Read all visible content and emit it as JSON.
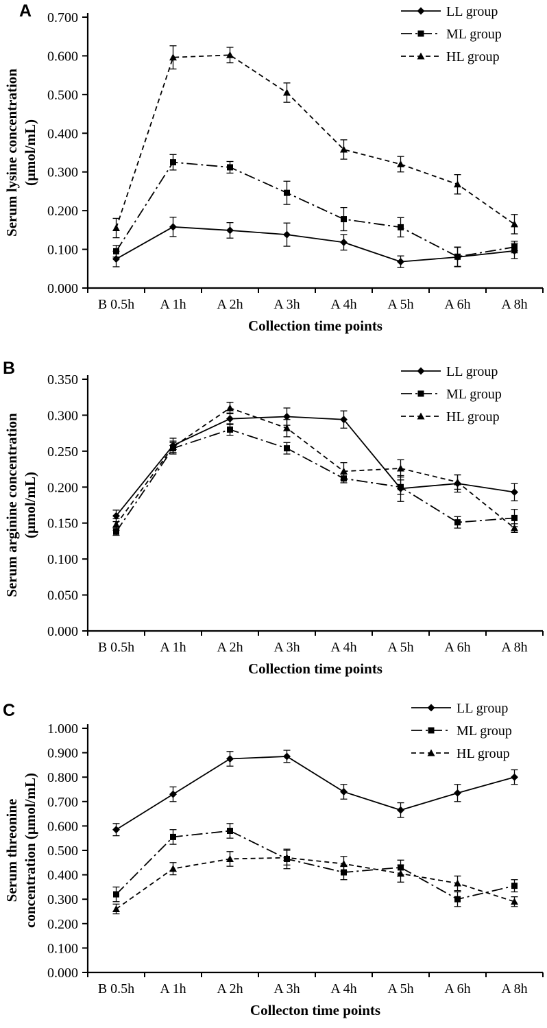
{
  "figure": {
    "panel_count": 3,
    "background_color": "#ffffff",
    "line_color": "#000000"
  },
  "chart_data": [
    {
      "type": "line",
      "label": "A",
      "xlabel": "Collection time points",
      "ylabel": [
        "Serum lysine concentration",
        "(μmol/mL)"
      ],
      "ymax": 0.7,
      "ystep": 0.1,
      "ylim": [
        0.0,
        0.7
      ],
      "grid": false,
      "legend_position": "top-right",
      "error_bars": true,
      "categories": [
        "B 0.5h",
        "A 1h",
        "A 2h",
        "A 3h",
        "A 4h",
        "A 5h",
        "A 6h",
        "A 8h"
      ],
      "series": [
        {
          "name": "LL group",
          "marker": "diamond",
          "dash": "solid",
          "values": [
            0.075,
            0.158,
            0.149,
            0.138,
            0.118,
            0.068,
            0.08,
            0.096
          ],
          "errors": [
            0.02,
            0.025,
            0.02,
            0.03,
            0.02,
            0.015,
            0.025,
            0.02
          ]
        },
        {
          "name": "ML group",
          "marker": "square",
          "dash": "dashdot",
          "values": [
            0.095,
            0.325,
            0.312,
            0.246,
            0.178,
            0.157,
            0.081,
            0.106
          ],
          "errors": [
            0.015,
            0.02,
            0.015,
            0.03,
            0.03,
            0.025,
            0.025,
            0.015
          ]
        },
        {
          "name": "HL group",
          "marker": "triangle",
          "dash": "dashed",
          "values": [
            0.155,
            0.596,
            0.602,
            0.505,
            0.358,
            0.32,
            0.268,
            0.165
          ],
          "errors": [
            0.025,
            0.03,
            0.02,
            0.025,
            0.025,
            0.02,
            0.025,
            0.025
          ]
        }
      ]
    },
    {
      "type": "line",
      "label": "B",
      "xlabel": "Collection time points",
      "ylabel": [
        "Serum arginine concentration",
        "(μmol/mL)"
      ],
      "ymax": 0.35,
      "ystep": 0.05,
      "ylim": [
        0.0,
        0.35
      ],
      "grid": false,
      "legend_position": "top-right",
      "error_bars": true,
      "categories": [
        "B 0.5h",
        "A 1h",
        "A 2h",
        "A 3h",
        "A 4h",
        "A 5h",
        "A 6h",
        "A 8h"
      ],
      "series": [
        {
          "name": "LL group",
          "marker": "diamond",
          "dash": "solid",
          "values": [
            0.16,
            0.258,
            0.295,
            0.298,
            0.294,
            0.198,
            0.205,
            0.193
          ],
          "errors": [
            0.008,
            0.01,
            0.008,
            0.012,
            0.012,
            0.018,
            0.012,
            0.012
          ]
        },
        {
          "name": "ML group",
          "marker": "square",
          "dash": "dashdot",
          "values": [
            0.138,
            0.254,
            0.28,
            0.254,
            0.212,
            0.2,
            0.151,
            0.157
          ],
          "errors": [
            0.005,
            0.008,
            0.008,
            0.008,
            0.006,
            0.01,
            0.008,
            0.012
          ]
        },
        {
          "name": "HL group",
          "marker": "triangle",
          "dash": "dashed",
          "values": [
            0.148,
            0.256,
            0.31,
            0.282,
            0.222,
            0.226,
            0.207,
            0.143
          ],
          "errors": [
            0.008,
            0.008,
            0.008,
            0.012,
            0.012,
            0.012,
            0.01,
            0.006
          ]
        }
      ]
    },
    {
      "type": "line",
      "label": "C",
      "xlabel": "Collecton time points",
      "ylabel": [
        "Serum  threonine",
        "concentration (μmol/mL)"
      ],
      "ymax": 1.0,
      "ystep": 0.1,
      "ylim": [
        0.0,
        1.0
      ],
      "grid": false,
      "legend_position": "top-right",
      "error_bars": true,
      "categories": [
        "B 0.5h",
        "A 1h",
        "A 2h",
        "A 3h",
        "A 4h",
        "A 5h",
        "A 6h",
        "A 8h"
      ],
      "series": [
        {
          "name": "LL group",
          "marker": "diamond",
          "dash": "solid",
          "values": [
            0.585,
            0.73,
            0.875,
            0.885,
            0.74,
            0.665,
            0.735,
            0.8
          ],
          "errors": [
            0.025,
            0.03,
            0.03,
            0.025,
            0.03,
            0.03,
            0.035,
            0.03
          ]
        },
        {
          "name": "ML group",
          "marker": "square",
          "dash": "dashdot",
          "values": [
            0.32,
            0.555,
            0.58,
            0.465,
            0.41,
            0.43,
            0.3,
            0.355
          ],
          "errors": [
            0.03,
            0.03,
            0.03,
            0.04,
            0.03,
            0.03,
            0.03,
            0.025
          ]
        },
        {
          "name": "HL group",
          "marker": "triangle",
          "dash": "dashed",
          "values": [
            0.26,
            0.425,
            0.465,
            0.47,
            0.445,
            0.405,
            0.365,
            0.29
          ],
          "errors": [
            0.02,
            0.025,
            0.03,
            0.03,
            0.03,
            0.035,
            0.03,
            0.02
          ]
        }
      ]
    }
  ]
}
